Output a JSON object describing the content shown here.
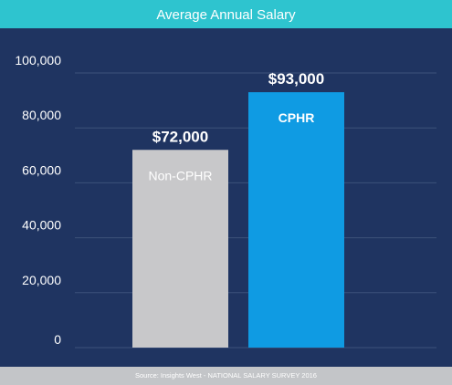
{
  "title": "Average Annual Salary",
  "source": "Source: Insights West - NATIONAL SALARY SURVEY 2016",
  "colors": {
    "background": "#1f3461",
    "header": "#2ec4cf",
    "footer": "#c3c5c8",
    "gridline": "#3d527a"
  },
  "chart_data": {
    "type": "bar",
    "title": "Average Annual Salary",
    "xlabel": "",
    "ylabel": "",
    "categories": [
      "Non-CPHR",
      "CPHR"
    ],
    "values": [
      72000,
      93000
    ],
    "value_labels": [
      "$72,000",
      "$93,000"
    ],
    "bar_colors": [
      "#c8c8ca",
      "#0f9be3"
    ],
    "ylim": [
      0,
      100000
    ],
    "yticks": [
      0,
      20000,
      40000,
      60000,
      80000,
      100000
    ],
    "ytick_labels": [
      "0",
      "20,000",
      "40,000",
      "60,000",
      "80,000",
      "100,000"
    ],
    "grid": true,
    "legend": "none"
  }
}
